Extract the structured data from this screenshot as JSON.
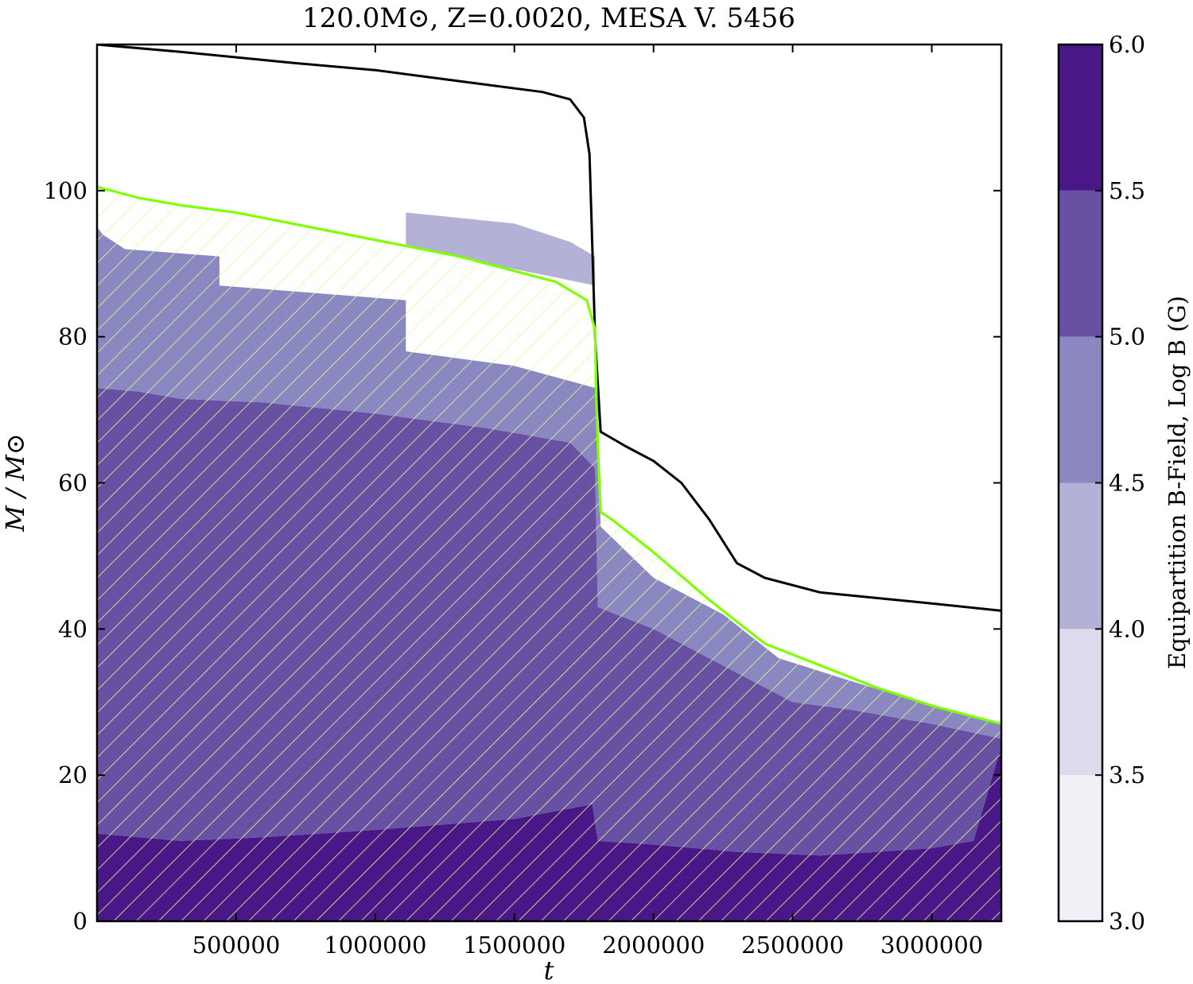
{
  "chart_data": {
    "type": "area",
    "title": "120.0M⊙, Z=0.0020, MESA V. 5456",
    "xlabel": "t",
    "ylabel": "M / M⊙",
    "xlim": [
      0,
      3250000
    ],
    "ylim": [
      0,
      120
    ],
    "x_ticks": [
      500000,
      1000000,
      1500000,
      2000000,
      2500000,
      3000000
    ],
    "x_tick_labels": [
      "500000",
      "1000000",
      "1500000",
      "2000000",
      "2500000",
      "3000000"
    ],
    "y_ticks": [
      0,
      20,
      40,
      60,
      80,
      100
    ],
    "y_tick_labels": [
      "0",
      "20",
      "40",
      "60",
      "80",
      "100"
    ],
    "grid": false,
    "colorbar": {
      "label": "Equipartition B-Field, Log B (G)",
      "levels": [
        3.0,
        3.5,
        4.0,
        4.5,
        5.0,
        5.5,
        6.0
      ],
      "tick_labels": [
        "3.0",
        "3.5",
        "4.0",
        "4.5",
        "5.0",
        "5.5",
        "6.0"
      ],
      "colors": [
        "#f1f0f7",
        "#dcdaec",
        "#b3b1d5",
        "#8b87c0",
        "#6851a3",
        "#4a1786"
      ]
    },
    "series": [
      {
        "kind": "line",
        "color": "#000000",
        "points": [
          [
            0,
            120
          ],
          [
            300000,
            119
          ],
          [
            700000,
            117.5
          ],
          [
            1000000,
            116.5
          ],
          [
            1300000,
            115
          ],
          [
            1600000,
            113.5
          ],
          [
            1700000,
            112.5
          ],
          [
            1750000,
            110
          ],
          [
            1770000,
            105
          ],
          [
            1790000,
            80
          ],
          [
            1810000,
            67
          ],
          [
            1900000,
            65
          ],
          [
            2000000,
            63
          ],
          [
            2100000,
            60
          ],
          [
            2200000,
            55
          ],
          [
            2300000,
            49
          ],
          [
            2400000,
            47
          ],
          [
            2600000,
            45
          ],
          [
            3000000,
            43.5
          ],
          [
            3250000,
            42.5
          ]
        ]
      },
      {
        "kind": "line",
        "color": "#7fff00",
        "points": [
          [
            0,
            100.5
          ],
          [
            150000,
            99
          ],
          [
            300000,
            98
          ],
          [
            500000,
            97
          ],
          [
            700000,
            95.5
          ],
          [
            900000,
            94
          ],
          [
            1100000,
            92.5
          ],
          [
            1300000,
            91
          ],
          [
            1500000,
            89
          ],
          [
            1650000,
            87.5
          ],
          [
            1760000,
            85
          ],
          [
            1790000,
            81
          ],
          [
            1795000,
            71
          ],
          [
            1800000,
            65
          ],
          [
            1810000,
            56
          ],
          [
            1850000,
            55
          ],
          [
            2000000,
            50.5
          ],
          [
            2200000,
            44
          ],
          [
            2400000,
            38
          ],
          [
            2600000,
            35
          ],
          [
            2800000,
            32
          ],
          [
            3000000,
            29.5
          ],
          [
            3250000,
            27
          ]
        ]
      }
    ],
    "regions": [
      {
        "log_b": 5.75,
        "points": [
          [
            0,
            12
          ],
          [
            300000,
            11
          ],
          [
            600000,
            11.5
          ],
          [
            1000000,
            12.5
          ],
          [
            1500000,
            14
          ],
          [
            1780000,
            16
          ],
          [
            1800000,
            11
          ],
          [
            2000000,
            10.5
          ],
          [
            2300000,
            9.5
          ],
          [
            2600000,
            9
          ],
          [
            2800000,
            9.5
          ],
          [
            3000000,
            10
          ],
          [
            3150000,
            11
          ],
          [
            3250000,
            24
          ],
          [
            3250000,
            0
          ],
          [
            0,
            0
          ]
        ]
      },
      {
        "log_b": 5.25,
        "points": [
          [
            0,
            73
          ],
          [
            150000,
            72.5
          ],
          [
            300000,
            71.5
          ],
          [
            600000,
            71
          ],
          [
            1000000,
            69.5
          ],
          [
            1400000,
            67.5
          ],
          [
            1700000,
            65.5
          ],
          [
            1790000,
            62
          ],
          [
            1800000,
            43
          ],
          [
            2000000,
            40
          ],
          [
            2300000,
            34
          ],
          [
            2500000,
            30
          ],
          [
            2700000,
            29
          ],
          [
            3000000,
            27
          ],
          [
            3250000,
            25
          ],
          [
            3250000,
            24
          ],
          [
            3150000,
            11
          ],
          [
            3000000,
            10
          ],
          [
            2800000,
            9.5
          ],
          [
            2600000,
            9
          ],
          [
            2300000,
            9.5
          ],
          [
            2000000,
            10.5
          ],
          [
            1800000,
            11
          ],
          [
            1780000,
            16
          ],
          [
            1500000,
            14
          ],
          [
            1000000,
            12.5
          ],
          [
            600000,
            11.5
          ],
          [
            300000,
            11
          ],
          [
            0,
            12
          ]
        ]
      },
      {
        "log_b": 4.75,
        "points": [
          [
            0,
            95
          ],
          [
            20000,
            94
          ],
          [
            100000,
            92
          ],
          [
            440000,
            91
          ],
          [
            440000,
            87
          ],
          [
            1110000,
            85
          ],
          [
            1110000,
            78
          ],
          [
            1500000,
            76
          ],
          [
            1790000,
            73
          ],
          [
            1800000,
            72.5
          ],
          [
            1810000,
            54
          ],
          [
            2000000,
            47
          ],
          [
            2250000,
            42
          ],
          [
            2450000,
            36
          ],
          [
            2700000,
            33
          ],
          [
            3000000,
            29.5
          ],
          [
            3250000,
            27
          ],
          [
            3250000,
            25
          ],
          [
            3000000,
            27
          ],
          [
            2700000,
            29
          ],
          [
            2500000,
            30
          ],
          [
            2300000,
            34
          ],
          [
            2000000,
            40
          ],
          [
            1800000,
            43
          ],
          [
            1790000,
            62
          ],
          [
            1700000,
            65.5
          ],
          [
            1400000,
            67.5
          ],
          [
            1000000,
            69.5
          ],
          [
            600000,
            71
          ],
          [
            300000,
            71.5
          ],
          [
            150000,
            72.5
          ],
          [
            0,
            73
          ]
        ]
      },
      {
        "log_b": 4.25,
        "points": [
          [
            1110000,
            97
          ],
          [
            1500000,
            95.5
          ],
          [
            1700000,
            93
          ],
          [
            1790000,
            91
          ],
          [
            1790000,
            87
          ],
          [
            1600000,
            88.5
          ],
          [
            1400000,
            90
          ],
          [
            1110000,
            92.5
          ]
        ]
      }
    ]
  }
}
